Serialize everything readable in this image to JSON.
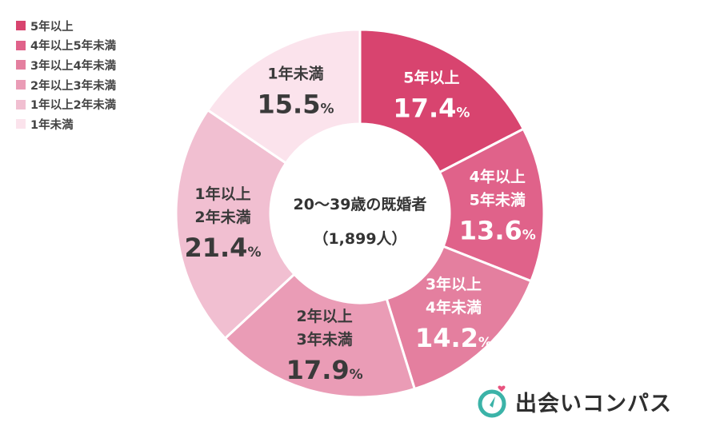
{
  "chart_data": {
    "type": "pie",
    "center_title": "20〜39歳の既婚者",
    "center_subtitle": "（1,899人）",
    "unit": "%",
    "legend_position": "top-left",
    "slices": [
      {
        "name": "5年以上",
        "lines": [
          "5年以上"
        ],
        "value": 17.4,
        "color": "#d8446f"
      },
      {
        "name": "4年以上5年未満",
        "lines": [
          "4年以上",
          "5年未満"
        ],
        "value": 13.6,
        "color": "#e0628a"
      },
      {
        "name": "3年以上4年未満",
        "lines": [
          "3年以上",
          "4年未満"
        ],
        "value": 14.2,
        "color": "#e47f9f"
      },
      {
        "name": "2年以上3年未満",
        "lines": [
          "2年以上",
          "3年未満"
        ],
        "value": 17.9,
        "color": "#ea9cb6"
      },
      {
        "name": "1年以上2年未満",
        "lines": [
          "1年以上",
          "2年未満"
        ],
        "value": 21.4,
        "color": "#f1bfd1"
      },
      {
        "name": "1年未満",
        "lines": [
          "1年未満"
        ],
        "value": 15.5,
        "color": "#fbe3ec"
      }
    ]
  },
  "logo": {
    "text": "出会いコンパス",
    "icon": "compass-icon"
  }
}
